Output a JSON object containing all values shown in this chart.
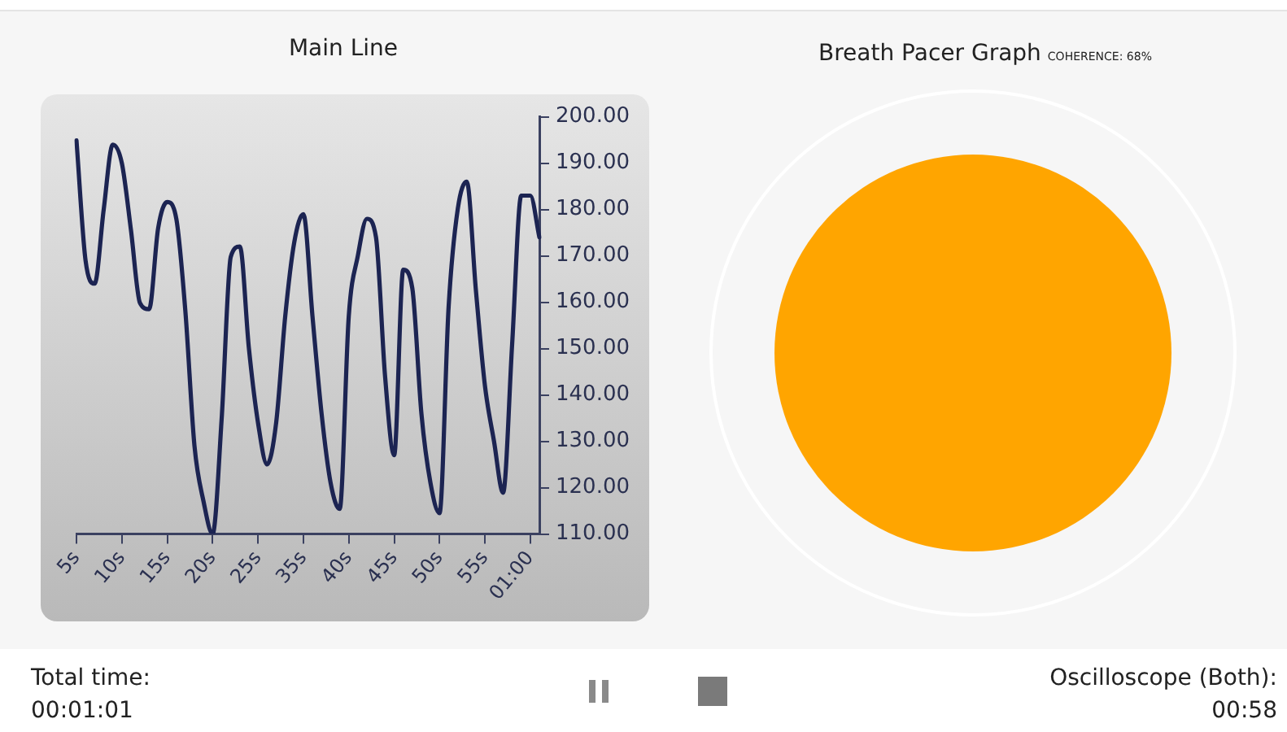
{
  "chart_data": {
    "type": "line",
    "title": "Main Line",
    "categories": [
      "5s",
      null,
      null,
      null,
      null,
      "10s",
      null,
      null,
      null,
      null,
      "15s",
      null,
      null,
      null,
      null,
      "20s",
      null,
      null,
      null,
      null,
      "25s",
      null,
      null,
      null,
      null,
      "35s",
      null,
      null,
      null,
      null,
      "40s",
      null,
      null,
      null,
      null,
      "45s",
      null,
      null,
      null,
      null,
      "50s",
      null,
      null,
      null,
      null,
      "55s",
      null,
      null,
      null,
      null,
      "01:00",
      null
    ],
    "series": [
      {
        "color": "#1c2452",
        "values": [
          194.9,
          169,
          164,
          180,
          194,
          190,
          175.6,
          159.8,
          158.5,
          176,
          181.6,
          178,
          158,
          129,
          117,
          110,
          135,
          169.8,
          172,
          150,
          134,
          125,
          134,
          157,
          173,
          179,
          157,
          136,
          121,
          115.4,
          157,
          170,
          178,
          174,
          144,
          127,
          167,
          163,
          136,
          121,
          114.5,
          159,
          180,
          186,
          162.7,
          142,
          130,
          118.9,
          151,
          183,
          183,
          174
        ]
      }
    ],
    "ylim": [
      110,
      200
    ],
    "yticks": [
      {
        "value": 110,
        "label": "110.00"
      },
      {
        "value": 120,
        "label": "120.00"
      },
      {
        "value": 130,
        "label": "130.00"
      },
      {
        "value": 140,
        "label": "140.00"
      },
      {
        "value": 150,
        "label": "150.00"
      },
      {
        "value": 160,
        "label": "160.00"
      },
      {
        "value": 170,
        "label": "170.00"
      },
      {
        "value": 180,
        "label": "180.00"
      },
      {
        "value": 190,
        "label": "190.00"
      },
      {
        "value": 200,
        "label": "200.00"
      }
    ],
    "grid": false,
    "legend": false,
    "marker": "none",
    "line_style": "solid",
    "annotations": [
      "Breath Pacer Graph",
      "COHERENCE: 68%",
      "Total time:",
      "00:01:01",
      "Oscilloscope (Both):",
      "00:58"
    ]
  }
}
